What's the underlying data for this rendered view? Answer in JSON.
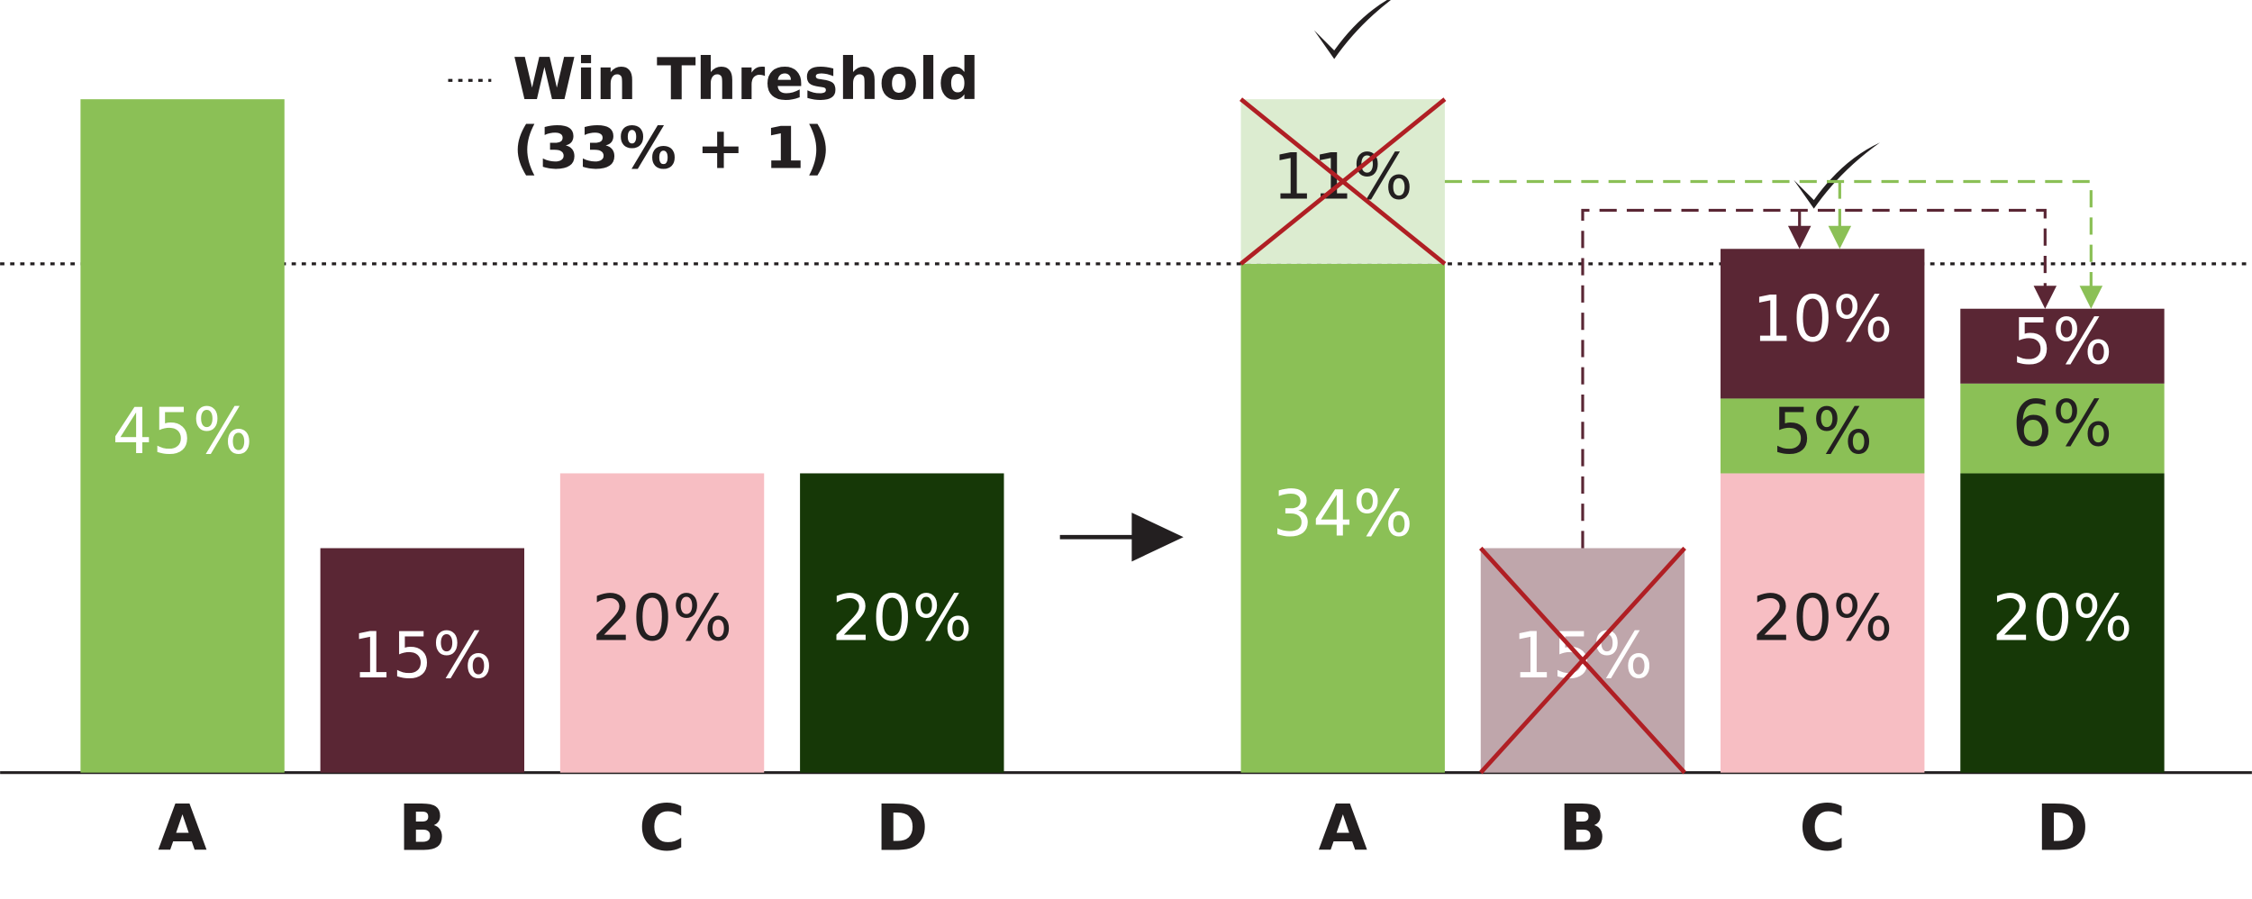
{
  "chart_data": [
    {
      "type": "bar",
      "categories": [
        "A",
        "B",
        "C",
        "D"
      ],
      "values": [
        45,
        15,
        20,
        20
      ],
      "value_labels": [
        "45%",
        "15%",
        "20%",
        "20%"
      ],
      "colors": [
        "#8bc056",
        "#5a2634",
        "#f7bec3",
        "#163807"
      ],
      "label_colors": [
        "#ffffff",
        "#ffffff",
        "#231f20",
        "#ffffff"
      ]
    },
    {
      "type": "stacked_bar",
      "categories": [
        "A",
        "B",
        "C",
        "D"
      ],
      "checked": [
        true,
        false,
        true,
        false
      ],
      "series": [
        {
          "values": [
            34,
            15,
            20,
            20
          ],
          "value_labels": [
            "34%",
            "15%",
            "20%",
            "20%"
          ],
          "colors": [
            "#8bc056",
            "#bfa6ab",
            "#f7bec3",
            "#163807"
          ],
          "label_colors": [
            "#ffffff",
            "#ffffff",
            "#231f20",
            "#ffffff"
          ],
          "crossed": [
            false,
            true,
            false,
            false
          ]
        },
        {
          "values": [
            11,
            null,
            5,
            6
          ],
          "value_labels": [
            "11%",
            null,
            "5%",
            "6%"
          ],
          "colors": [
            "#dcecd0",
            null,
            "#8bc056",
            "#8bc056"
          ],
          "label_colors": [
            "#231f20",
            null,
            "#231f20",
            "#231f20"
          ],
          "crossed": [
            true,
            false,
            false,
            false
          ]
        },
        {
          "values": [
            null,
            null,
            10,
            5
          ],
          "value_labels": [
            null,
            null,
            "10%",
            "5%"
          ],
          "colors": [
            null,
            null,
            "#5a2634",
            "#5a2634"
          ],
          "label_colors": [
            null,
            null,
            "#ffffff",
            "#ffffff"
          ],
          "crossed": [
            false,
            false,
            false,
            false
          ]
        }
      ]
    }
  ],
  "threshold": {
    "value": 34,
    "label_lines": [
      "Win Threshold",
      "(33% + 1)"
    ]
  }
}
